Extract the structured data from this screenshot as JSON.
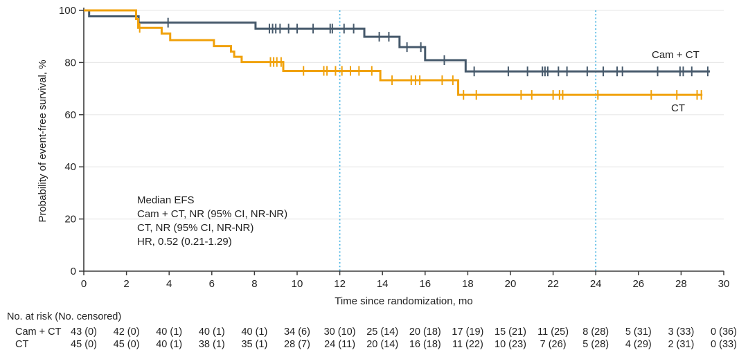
{
  "chart_data": {
    "type": "line",
    "subtype": "kaplan-meier-step",
    "title": "",
    "xlabel": "Time since randomization, mo",
    "ylabel": "Probability of event-free survival, %",
    "xlim": [
      0,
      30
    ],
    "ylim": [
      0,
      100
    ],
    "x_ticks": [
      0,
      2,
      4,
      6,
      8,
      10,
      12,
      14,
      16,
      18,
      20,
      22,
      24,
      26,
      28,
      30
    ],
    "y_ticks": [
      0,
      20,
      40,
      60,
      80,
      100
    ],
    "grid": "horizontal gridlines at y ticks, light gray",
    "reference_lines_x": [
      12,
      24
    ],
    "legend_position": "labels at right ends of curves",
    "annotation": {
      "lines": [
        "Median EFS",
        "Cam + CT, NR (95% CI, NR-NR)",
        "CT, NR (95% CI, NR-NR)",
        "HR, 0.52 (0.21-1.29)"
      ]
    },
    "series": [
      {
        "name": "Cam + CT",
        "color": "#46596B",
        "start_survival_pct": 100,
        "drops_t_pct": [
          [
            0.25,
            97.7
          ],
          [
            2.57,
            95.3
          ],
          [
            8.05,
            93.0
          ],
          [
            13.15,
            89.9
          ],
          [
            14.8,
            85.9
          ],
          [
            16.0,
            80.9
          ],
          [
            17.9,
            76.6
          ]
        ],
        "end_t": 29.35,
        "censor_t": [
          3.95,
          8.7,
          8.85,
          9.0,
          9.2,
          9.6,
          10.0,
          10.75,
          11.55,
          11.65,
          12.2,
          12.65,
          13.85,
          14.3,
          15.15,
          15.8,
          16.9,
          18.3,
          19.9,
          20.8,
          21.5,
          21.62,
          21.75,
          22.25,
          22.65,
          23.6,
          24.35,
          25.0,
          25.25,
          26.9,
          27.95,
          28.1,
          28.5,
          29.25
        ]
      },
      {
        "name": "CT",
        "color": "#F0A10B",
        "start_survival_pct": 100,
        "drops_t_pct": [
          [
            2.45,
            96.7
          ],
          [
            2.55,
            93.3
          ],
          [
            3.65,
            91.1
          ],
          [
            4.05,
            88.6
          ],
          [
            6.1,
            86.3
          ],
          [
            6.9,
            84.2
          ],
          [
            7.05,
            82.2
          ],
          [
            7.4,
            80.2
          ],
          [
            9.35,
            76.8
          ],
          [
            13.9,
            73.2
          ],
          [
            17.55,
            67.6
          ]
        ],
        "end_t": 29.0,
        "censor_t": [
          2.62,
          8.75,
          8.9,
          9.05,
          9.25,
          10.3,
          11.25,
          11.4,
          11.8,
          12.1,
          12.5,
          12.9,
          13.5,
          14.45,
          15.35,
          15.55,
          15.75,
          16.8,
          17.3,
          17.8,
          18.4,
          20.5,
          21.0,
          22.0,
          22.3,
          22.45,
          24.1,
          26.6,
          27.8,
          28.75,
          28.95
        ]
      }
    ]
  },
  "risk_table": {
    "header": "No. at risk (No. censored)",
    "time_points": [
      0,
      2,
      4,
      6,
      8,
      10,
      12,
      14,
      16,
      18,
      20,
      22,
      24,
      26,
      28,
      30
    ],
    "rows": [
      {
        "label": "Cam + CT",
        "values": [
          "43 (0)",
          "42 (0)",
          "40 (1)",
          "40 (1)",
          "40 (1)",
          "34 (6)",
          "30 (10)",
          "25 (14)",
          "20 (18)",
          "17 (19)",
          "15 (21)",
          "11 (25)",
          "8 (28)",
          "5 (31)",
          "3 (33)",
          "0 (36)"
        ]
      },
      {
        "label": "CT",
        "values": [
          "45 (0)",
          "45 (0)",
          "40 (1)",
          "38 (1)",
          "35 (1)",
          "28 (7)",
          "24 (11)",
          "20 (14)",
          "16 (18)",
          "11 (22)",
          "10 (23)",
          "7 (26)",
          "5 (28)",
          "4 (29)",
          "2 (31)",
          "0 (33)"
        ]
      }
    ]
  },
  "colors": {
    "camct_line": "#46596B",
    "ct_line": "#F0A10B",
    "reference_line": "#44B2E2",
    "gridline": "#E9E9E9",
    "axis": "#3B3B3B",
    "text": "#232323"
  }
}
